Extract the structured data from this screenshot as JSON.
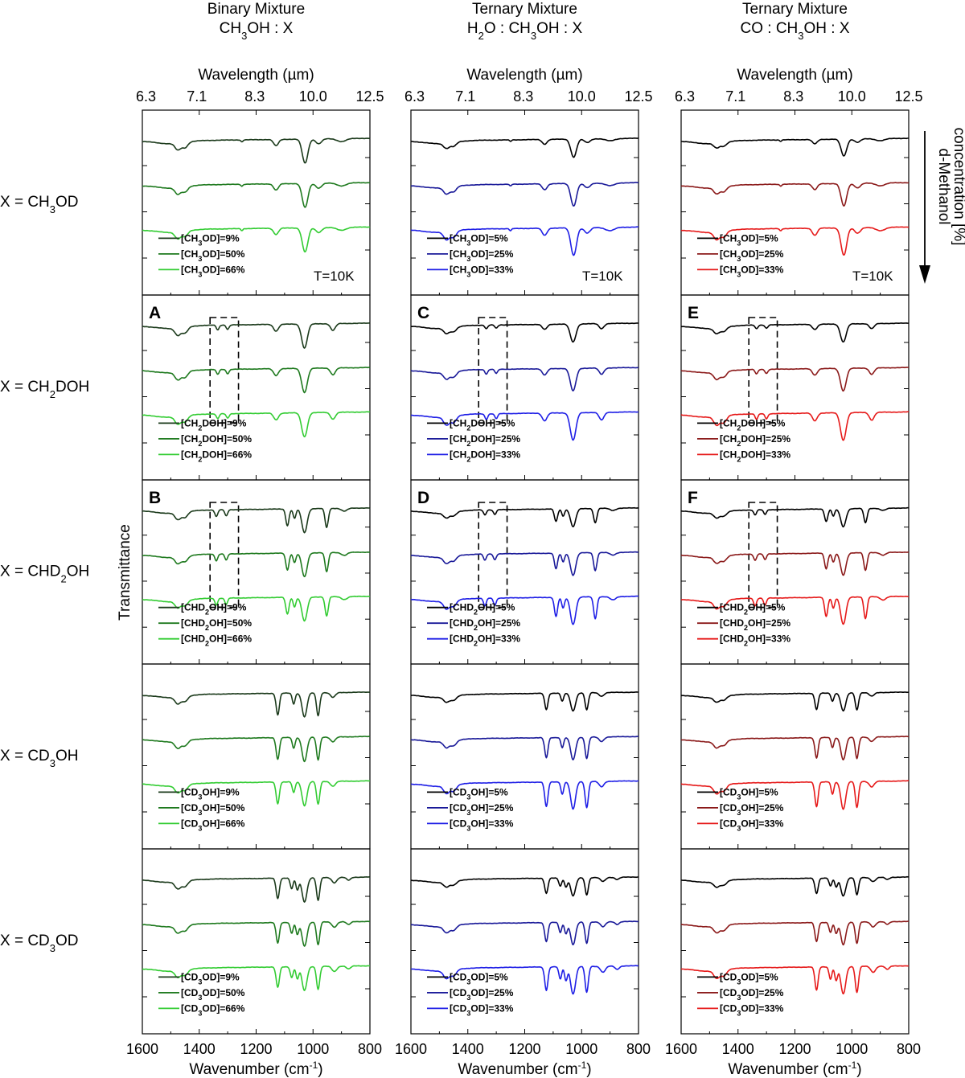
{
  "chart_data": {
    "type": "line",
    "ylabel": "Transmittance",
    "xlabel": "Wavenumber (cm⁻¹)",
    "xlabel_base": "Wavenumber (cm",
    "xlabel_sup": "-1",
    "xlabel_close": ")",
    "x2label": "Wavelength (µm)",
    "xlim": [
      1600,
      800
    ],
    "x_ticks": [
      "1600",
      "1400",
      "1200",
      "1000",
      "800"
    ],
    "x2_ticks": [
      "6.3",
      "7.1",
      "8.3",
      "10.0",
      "12.5"
    ],
    "temperature": "T=10K",
    "arrow_label": [
      "d-Methanol",
      "concentration [%]"
    ],
    "columns": [
      {
        "title": "Binary Mixture",
        "subtitle": "CH3OH : X",
        "subtitle_parts": [
          [
            "CH",
            false
          ],
          [
            "3",
            true
          ],
          [
            "OH : X",
            false
          ]
        ],
        "colors": [
          "#1b3a1b",
          "#1f7a1f",
          "#33cc33"
        ],
        "concentrations": [
          "9%",
          "50%",
          "66%"
        ]
      },
      {
        "title": "Ternary Mixture",
        "subtitle": "H2O : CH3OH : X",
        "subtitle_parts": [
          [
            "H",
            false
          ],
          [
            "2",
            true
          ],
          [
            "O : CH",
            false
          ],
          [
            "3",
            true
          ],
          [
            "OH : X",
            false
          ]
        ],
        "colors": [
          "#000000",
          "#1a1a99",
          "#1f1fe6"
        ],
        "concentrations": [
          "5%",
          "25%",
          "33%"
        ]
      },
      {
        "title": "Ternary Mixture",
        "subtitle": "CO : CH3OH : X",
        "subtitle_parts": [
          [
            "CO : CH",
            false
          ],
          [
            "3",
            true
          ],
          [
            "OH : X",
            false
          ]
        ],
        "colors": [
          "#000000",
          "#8b1a1a",
          "#e61a1a"
        ],
        "concentrations": [
          "5%",
          "25%",
          "33%"
        ]
      }
    ],
    "rows": [
      {
        "label": "X = CH3OD",
        "species": "CH3OD",
        "species_parts": [
          [
            "CH",
            false
          ],
          [
            "3",
            true
          ],
          [
            "OD",
            false
          ]
        ],
        "letters": [
          "",
          "",
          ""
        ],
        "box": false,
        "bands": [
          {
            "x": 1475,
            "depth": 0.28,
            "width": 14
          },
          {
            "x": 1450,
            "depth": 0.22,
            "width": 14
          },
          {
            "x": 1250,
            "depth": 0.08,
            "width": 5
          },
          {
            "x": 1130,
            "depth": 0.26,
            "width": 12
          },
          {
            "x": 1028,
            "depth": 1.0,
            "width": 14
          },
          {
            "x": 980,
            "depth": 0.2,
            "width": 14
          },
          {
            "x": 900,
            "depth": 0.12,
            "width": 22
          }
        ]
      },
      {
        "label": "X = CH2DOH",
        "species": "CH2DOH",
        "species_parts": [
          [
            "CH",
            false
          ],
          [
            "2",
            true
          ],
          [
            "DOH",
            false
          ]
        ],
        "letters": [
          "A",
          "C",
          "E"
        ],
        "box": true,
        "bands": [
          {
            "x": 1475,
            "depth": 0.3,
            "width": 14
          },
          {
            "x": 1450,
            "depth": 0.24,
            "width": 14
          },
          {
            "x": 1335,
            "depth": 0.2,
            "width": 7
          },
          {
            "x": 1300,
            "depth": 0.18,
            "width": 7
          },
          {
            "x": 1130,
            "depth": 0.28,
            "width": 12
          },
          {
            "x": 1030,
            "depth": 1.0,
            "width": 14
          },
          {
            "x": 930,
            "depth": 0.28,
            "width": 12
          }
        ]
      },
      {
        "label": "X = CHD2OH",
        "species": "CHD2OH",
        "species_parts": [
          [
            "CHD",
            false
          ],
          [
            "2",
            true
          ],
          [
            "OH",
            false
          ]
        ],
        "letters": [
          "B",
          "D",
          "F"
        ],
        "box": true,
        "bands": [
          {
            "x": 1475,
            "depth": 0.28,
            "width": 14
          },
          {
            "x": 1450,
            "depth": 0.22,
            "width": 14
          },
          {
            "x": 1340,
            "depth": 0.28,
            "width": 7
          },
          {
            "x": 1305,
            "depth": 0.26,
            "width": 7
          },
          {
            "x": 1090,
            "depth": 0.7,
            "width": 8
          },
          {
            "x": 1065,
            "depth": 0.4,
            "width": 7
          },
          {
            "x": 1030,
            "depth": 1.0,
            "width": 13
          },
          {
            "x": 952,
            "depth": 0.8,
            "width": 8
          },
          {
            "x": 890,
            "depth": 0.12,
            "width": 14
          }
        ]
      },
      {
        "label": "X = CD3OH",
        "species": "CD3OH",
        "species_parts": [
          [
            "CD",
            false
          ],
          [
            "3",
            true
          ],
          [
            "OH",
            false
          ]
        ],
        "letters": [
          "",
          "",
          ""
        ],
        "box": false,
        "bands": [
          {
            "x": 1475,
            "depth": 0.28,
            "width": 14
          },
          {
            "x": 1450,
            "depth": 0.22,
            "width": 14
          },
          {
            "x": 1124,
            "depth": 0.9,
            "width": 8
          },
          {
            "x": 1068,
            "depth": 0.45,
            "width": 7
          },
          {
            "x": 1030,
            "depth": 1.0,
            "width": 12
          },
          {
            "x": 982,
            "depth": 0.95,
            "width": 8
          },
          {
            "x": 930,
            "depth": 0.2,
            "width": 12
          }
        ]
      },
      {
        "label": "X = CD3OD",
        "species": "CD3OD",
        "species_parts": [
          [
            "CD",
            false
          ],
          [
            "3",
            true
          ],
          [
            "OD",
            false
          ]
        ],
        "letters": [
          "",
          "",
          ""
        ],
        "box": false,
        "bands": [
          {
            "x": 1475,
            "depth": 0.28,
            "width": 14
          },
          {
            "x": 1450,
            "depth": 0.22,
            "width": 14
          },
          {
            "x": 1124,
            "depth": 0.85,
            "width": 8
          },
          {
            "x": 1075,
            "depth": 0.45,
            "width": 7
          },
          {
            "x": 1055,
            "depth": 0.5,
            "width": 7
          },
          {
            "x": 1030,
            "depth": 1.0,
            "width": 12
          },
          {
            "x": 982,
            "depth": 0.95,
            "width": 8
          },
          {
            "x": 925,
            "depth": 0.22,
            "width": 12
          },
          {
            "x": 875,
            "depth": 0.12,
            "width": 10
          }
        ]
      }
    ]
  }
}
